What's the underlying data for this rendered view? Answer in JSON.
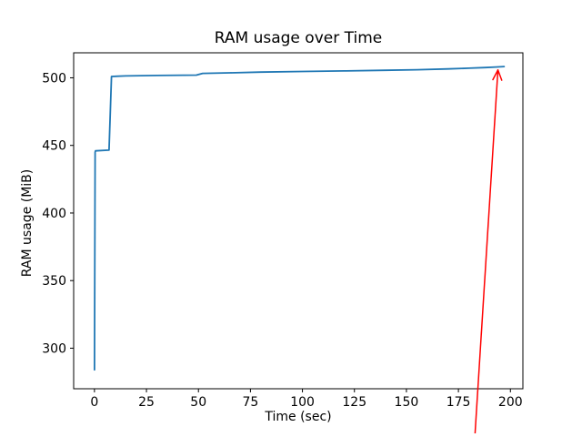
{
  "figure": {
    "background": "#ffffff",
    "spine_color": "#000000",
    "text_color": "#000000"
  },
  "chart_data": {
    "type": "line",
    "title": "RAM usage over Time",
    "xlabel": "Time (sec)",
    "ylabel": "RAM usage (MiB)",
    "xlim": [
      -10,
      206
    ],
    "ylim": [
      270,
      518.5
    ],
    "xticks": [
      0,
      25,
      50,
      75,
      100,
      125,
      150,
      175,
      200
    ],
    "yticks": [
      300,
      350,
      400,
      450,
      500
    ],
    "grid": false,
    "legend": null,
    "series": [
      {
        "name": "ram-usage-line",
        "color": "#1f77b4",
        "x": [
          0,
          0.3,
          0.5,
          7,
          8.2,
          15,
          30,
          49,
          52,
          65,
          80,
          100,
          120,
          140,
          155,
          170,
          180,
          188,
          193,
          197
        ],
        "y": [
          284,
          445,
          446,
          446.5,
          501,
          501.4,
          501.7,
          502,
          503.3,
          503.7,
          504.2,
          504.7,
          505.1,
          505.6,
          506.0,
          506.6,
          507.1,
          507.6,
          508.0,
          508.3
        ]
      }
    ],
    "annotations": [
      {
        "type": "arrow",
        "color": "#ff0000",
        "tail_xy": [
          183,
          237
        ],
        "tip_xy": [
          194,
          505.8
        ]
      }
    ]
  }
}
